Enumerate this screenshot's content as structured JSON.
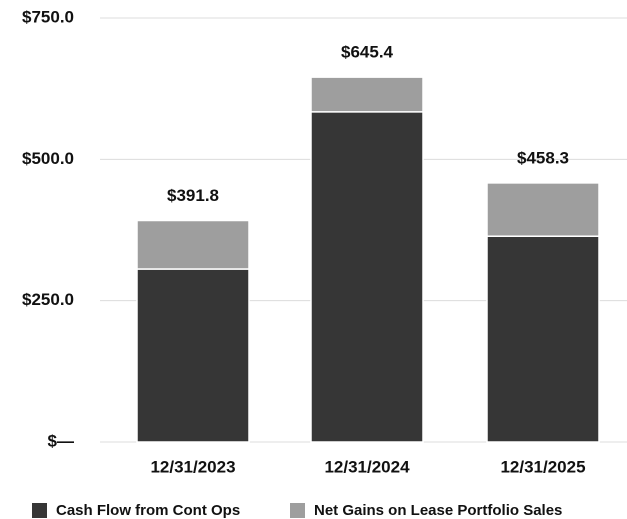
{
  "chart_data": {
    "type": "stacked_bar",
    "categories": [
      "12/31/2023",
      "12/31/2024",
      "12/31/2025"
    ],
    "series": [
      {
        "name": "Cash Flow from Cont Ops",
        "color": "#363636",
        "values": [
          306,
          584,
          364
        ]
      },
      {
        "name": "Net Gains on Lease Portfolio Sales",
        "color": "#9e9e9e",
        "values": [
          85.8,
          61.4,
          94.3
        ]
      }
    ],
    "totals": [
      391.8,
      645.4,
      458.3
    ],
    "total_labels": [
      "$391.8",
      "$645.4",
      "$458.3"
    ],
    "ylim": [
      0,
      750
    ],
    "yticks": [
      {
        "value": 0,
        "label": "$—"
      },
      {
        "value": 250,
        "label": "$250.0"
      },
      {
        "value": 500,
        "label": "$500.0"
      },
      {
        "value": 750,
        "label": "$750.0"
      }
    ],
    "grid": true,
    "legend": "bottom"
  }
}
